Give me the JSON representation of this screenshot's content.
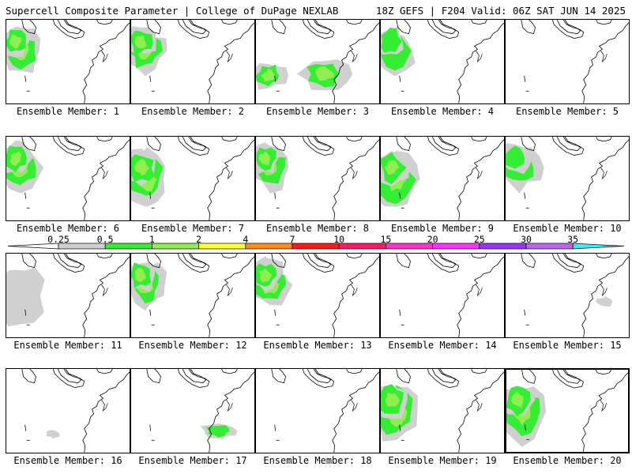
{
  "header": {
    "title_left": "Supercell Composite Parameter | College of DuPage NEXLAB",
    "title_right": "18Z GEFS | F204 Valid: 06Z SAT JUN 14 2025"
  },
  "panel_label_prefix": "Ensemble Member:",
  "colors": {
    "gray": "#d0d0d0",
    "green": "#33ee33",
    "lightgreen": "#90ee50",
    "yellow": "#ffff33",
    "orange": "#ff8c1a",
    "red": "#ff1a1a",
    "crimson": "#ff1a66",
    "magenta": "#ff33cc",
    "pink": "#ff33ff",
    "purple": "#9933ff",
    "lavender": "#bb66ee",
    "cyan": "#33eeff"
  },
  "colorbar": {
    "labels": [
      "0.25",
      "0.5",
      "1",
      "2",
      "4",
      "7",
      "10",
      "15",
      "20",
      "25",
      "30",
      "35"
    ],
    "colors": [
      "#d0d0d0",
      "#33ee33",
      "#90ee50",
      "#ffff33",
      "#ff8c1a",
      "#ff1a1a",
      "#ff1a66",
      "#ff33cc",
      "#ff33ff",
      "#9933ff",
      "#bb66ee"
    ],
    "overflow_color": "#33eeff"
  },
  "members": [
    {
      "n": "1",
      "intensity": "moderate",
      "region": "northwest"
    },
    {
      "n": "2",
      "intensity": "moderate",
      "region": "northwest"
    },
    {
      "n": "3",
      "intensity": "moderate",
      "region": "west and central"
    },
    {
      "n": "4",
      "intensity": "weak",
      "region": "northwest"
    },
    {
      "n": "5",
      "intensity": "none",
      "region": ""
    },
    {
      "n": "6",
      "intensity": "high",
      "region": "northwest"
    },
    {
      "n": "7",
      "intensity": "moderate",
      "region": "west"
    },
    {
      "n": "8",
      "intensity": "moderate",
      "region": "northwest"
    },
    {
      "n": "9",
      "intensity": "moderate",
      "region": "west"
    },
    {
      "n": "10",
      "intensity": "weak",
      "region": "northwest"
    },
    {
      "n": "11",
      "intensity": "none",
      "region": "west"
    },
    {
      "n": "12",
      "intensity": "moderate",
      "region": "northwest"
    },
    {
      "n": "13",
      "intensity": "moderate",
      "region": "northwest"
    },
    {
      "n": "14",
      "intensity": "none",
      "region": ""
    },
    {
      "n": "15",
      "intensity": "none",
      "region": "east"
    },
    {
      "n": "16",
      "intensity": "none",
      "region": "south"
    },
    {
      "n": "17",
      "intensity": "weak",
      "region": "south-central"
    },
    {
      "n": "18",
      "intensity": "none",
      "region": ""
    },
    {
      "n": "19",
      "intensity": "moderate",
      "region": "west"
    },
    {
      "n": "20",
      "intensity": "high",
      "region": "west",
      "selected": true
    }
  ]
}
